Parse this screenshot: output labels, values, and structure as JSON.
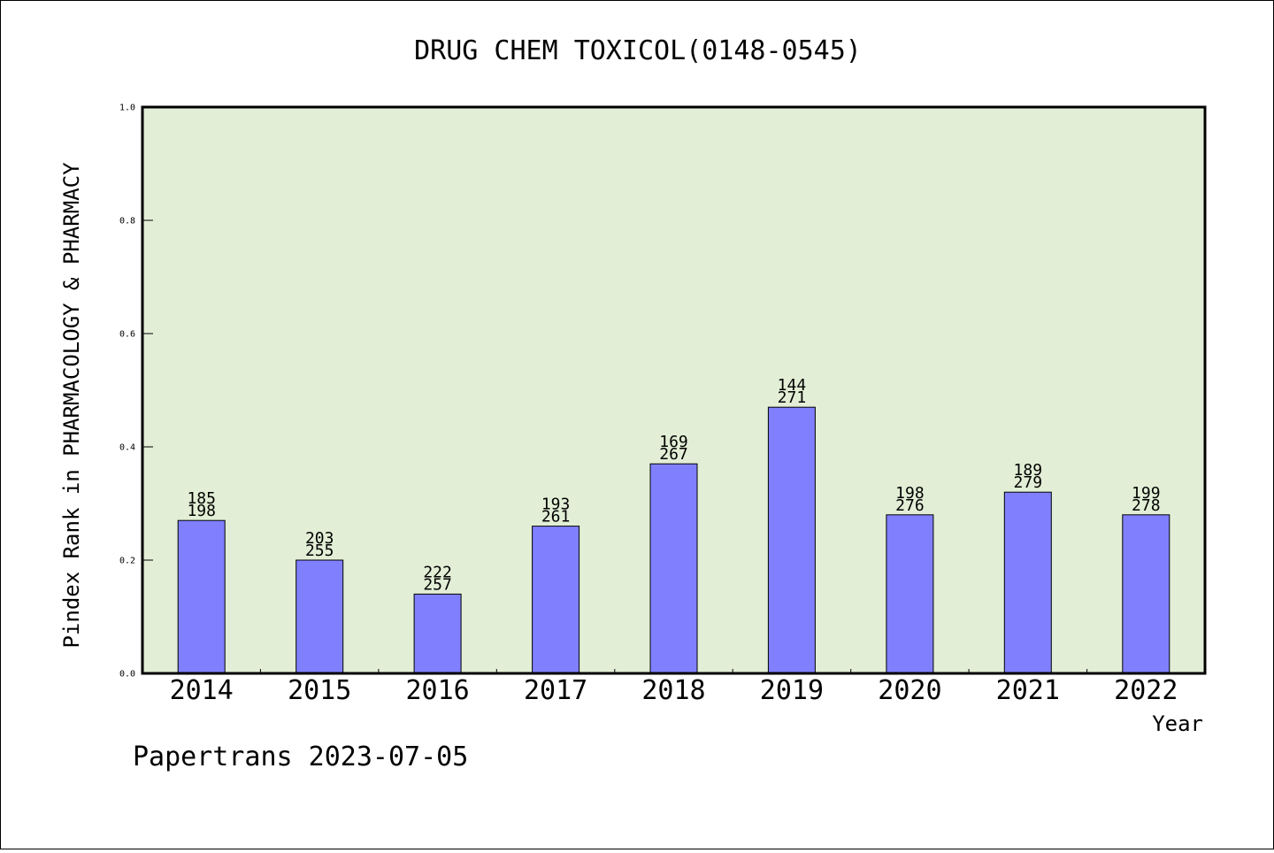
{
  "chart_data": {
    "type": "bar",
    "title": "DRUG CHEM TOXICOL(0148-0545)",
    "xlabel": "Year",
    "ylabel": "Pindex Rank in PHARMACOLOGY & PHARMACY",
    "ylim": [
      0,
      1.0
    ],
    "yticks": [
      "0.0",
      "0.2",
      "0.4",
      "0.6",
      "0.8",
      "1.0"
    ],
    "grid": false,
    "categories": [
      "2014",
      "2015",
      "2016",
      "2017",
      "2018",
      "2019",
      "2020",
      "2021",
      "2022"
    ],
    "values": [
      0.27,
      0.2,
      0.14,
      0.26,
      0.37,
      0.47,
      0.28,
      0.32,
      0.28
    ],
    "labels_top": [
      "185",
      "203",
      "222",
      "193",
      "169",
      "144",
      "198",
      "189",
      "199"
    ],
    "labels_bottom": [
      "198",
      "255",
      "257",
      "261",
      "267",
      "271",
      "276",
      "279",
      "278"
    ],
    "colors": {
      "bar": "#8080ff",
      "plot_background": "#e2efd6",
      "axis": "#000000"
    }
  },
  "footer": "Papertrans 2023-07-05"
}
